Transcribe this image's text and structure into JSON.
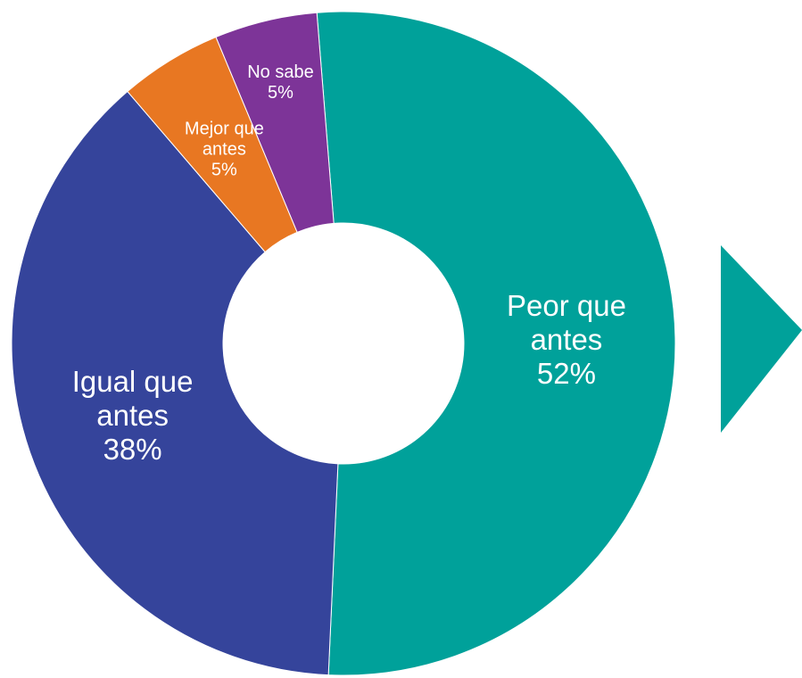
{
  "chart_data": {
    "type": "pie",
    "donut": true,
    "categories": [
      "Peor que antes",
      "Igual que antes",
      "Mejor que antes",
      "No sabe"
    ],
    "values": [
      52,
      38,
      5,
      5
    ],
    "value_labels": [
      "52%",
      "38%",
      "5%",
      "5%"
    ],
    "colors": [
      "#00a19a",
      "#35449b",
      "#e87722",
      "#7d3498"
    ]
  }
}
